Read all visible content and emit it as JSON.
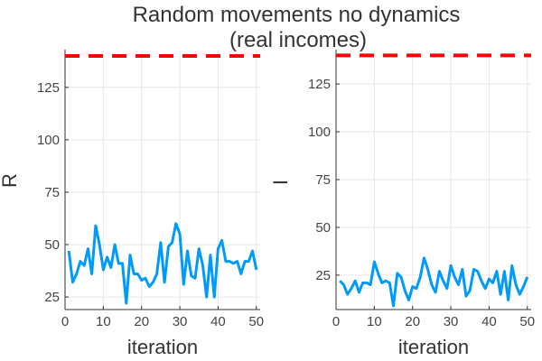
{
  "title_line1": "Random movements no dynamics",
  "title_line2": "(real incomes)",
  "chart_data": [
    {
      "type": "line",
      "xlabel": "iteration",
      "ylabel": "R",
      "xlim": [
        0,
        51
      ],
      "ylim": [
        19,
        143
      ],
      "xticks": [
        0,
        10,
        20,
        30,
        40,
        50
      ],
      "yticks": [
        25,
        50,
        75,
        100,
        125
      ],
      "grid": true,
      "legend": "none",
      "reference_line": {
        "y": 140,
        "color": "#ff0000",
        "style": "dashed"
      },
      "series": [
        {
          "color": "#009af9",
          "x": [
            1,
            2,
            3,
            4,
            5,
            6,
            7,
            8,
            9,
            10,
            11,
            12,
            13,
            14,
            15,
            16,
            17,
            18,
            19,
            20,
            21,
            22,
            23,
            24,
            25,
            26,
            27,
            28,
            29,
            30,
            31,
            32,
            33,
            34,
            35,
            36,
            37,
            38,
            39,
            40,
            41,
            42,
            43,
            44,
            45,
            46,
            47,
            48,
            49,
            50,
            51
          ],
          "values": [
            47,
            32,
            36,
            42,
            40,
            48,
            36,
            59,
            50,
            38,
            44,
            39,
            50,
            41,
            41,
            22,
            45,
            36,
            36,
            33,
            34,
            30,
            32,
            36,
            51,
            32,
            49,
            51,
            60,
            55,
            31,
            47,
            35,
            34,
            48,
            40,
            25,
            45,
            25,
            48,
            52,
            42,
            42,
            41,
            42,
            36,
            42,
            42,
            47,
            38,
            null
          ]
        }
      ]
    },
    {
      "type": "line",
      "xlabel": "iteration",
      "ylabel": "I",
      "xlim": [
        0,
        51
      ],
      "ylim": [
        7,
        143
      ],
      "xticks": [
        0,
        10,
        20,
        30,
        40,
        50
      ],
      "yticks": [
        25,
        50,
        75,
        100,
        125
      ],
      "grid": true,
      "legend": "none",
      "reference_line": {
        "y": 140,
        "color": "#ff0000",
        "style": "dashed"
      },
      "series": [
        {
          "color": "#009af9",
          "x": [
            1,
            2,
            3,
            4,
            5,
            6,
            7,
            8,
            9,
            10,
            11,
            12,
            13,
            14,
            15,
            16,
            17,
            18,
            19,
            20,
            21,
            22,
            23,
            24,
            25,
            26,
            27,
            28,
            29,
            30,
            31,
            32,
            33,
            34,
            35,
            36,
            37,
            38,
            39,
            40,
            41,
            42,
            43,
            44,
            45,
            46,
            47,
            48,
            49,
            50
          ],
          "values": [
            22,
            20,
            15,
            18,
            22,
            16,
            21,
            21,
            20,
            32,
            26,
            21,
            22,
            21,
            9,
            26,
            24,
            17,
            12,
            19,
            18,
            24,
            34,
            28,
            20,
            16,
            27,
            22,
            18,
            30,
            24,
            20,
            28,
            14,
            17,
            28,
            27,
            22,
            18,
            23,
            21,
            27,
            15,
            27,
            12,
            30,
            20,
            15,
            19,
            24
          ]
        }
      ]
    }
  ]
}
